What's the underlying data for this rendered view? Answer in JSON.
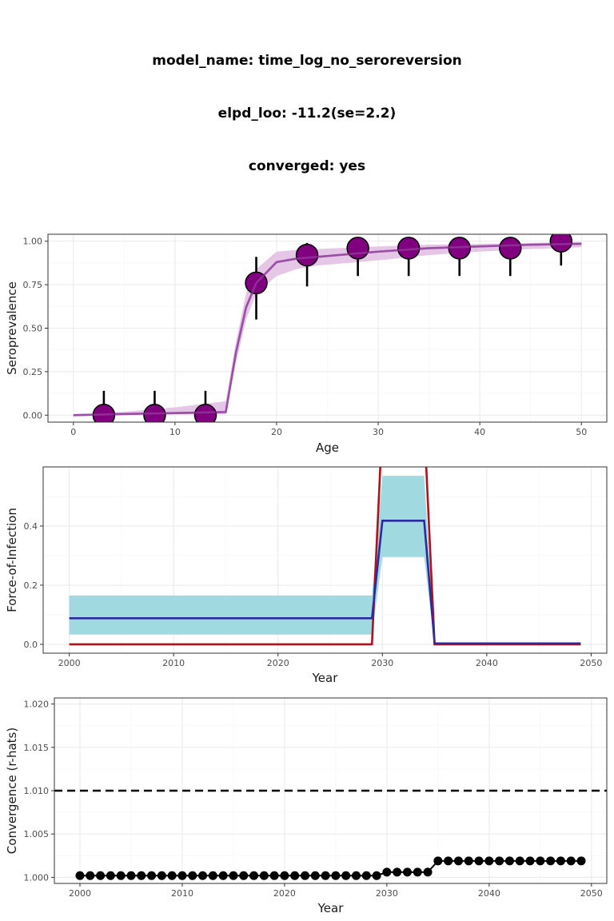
{
  "header": {
    "model_line": "model_name: time_log_no_seroreversion",
    "elpd_line": "elpd_loo: -11.2(se=2.2)",
    "converged_line": "converged: yes"
  },
  "colors": {
    "sero_point": "#800080",
    "sero_line": "#9b4ea5",
    "sero_ribbon": "#e6c6e6",
    "foi_ribbon": "#a1d9e1",
    "foi_estimate": "#2b2b9f",
    "foi_true": "#b3111a",
    "rhat_point": "#000000",
    "grid_major": "#ebebeb",
    "grid_minor": "#f5f5f5",
    "panel_border": "#333333"
  },
  "chart_data": [
    {
      "type": "line",
      "id": "seroprevalence",
      "xlabel": "Age",
      "ylabel": "Seroprevalence",
      "xlim": [
        -2.5,
        52.5
      ],
      "ylim": [
        -0.04,
        1.04
      ],
      "xticks": [
        0,
        10,
        20,
        30,
        40,
        50
      ],
      "yticks": [
        0.0,
        0.25,
        0.5,
        0.75,
        1.0
      ],
      "xtick_labels": [
        "0",
        "10",
        "20",
        "30",
        "40",
        "50"
      ],
      "ytick_labels": [
        "0.00",
        "0.25",
        "0.50",
        "0.75",
        "1.00"
      ],
      "fit": {
        "x": [
          0,
          5,
          10,
          15,
          16,
          17,
          18,
          20,
          22,
          24,
          26,
          28,
          30,
          35,
          40,
          45,
          50
        ],
        "median": [
          0,
          0.007,
          0.012,
          0.018,
          0.36,
          0.62,
          0.76,
          0.88,
          0.9,
          0.91,
          0.92,
          0.93,
          0.94,
          0.96,
          0.97,
          0.98,
          0.985
        ],
        "lower": [
          0,
          0.002,
          0.004,
          0.005,
          0.3,
          0.55,
          0.7,
          0.8,
          0.84,
          0.86,
          0.87,
          0.88,
          0.89,
          0.92,
          0.94,
          0.955,
          0.965
        ],
        "upper": [
          0,
          0.02,
          0.045,
          0.08,
          0.42,
          0.7,
          0.84,
          0.94,
          0.95,
          0.955,
          0.96,
          0.965,
          0.97,
          0.98,
          0.985,
          0.99,
          0.995
        ]
      },
      "observations": {
        "x": [
          3,
          8,
          13,
          18,
          23,
          28,
          33,
          38,
          43,
          48
        ],
        "y": [
          0.0,
          0.0,
          0.0,
          0.76,
          0.92,
          0.96,
          0.96,
          0.96,
          0.96,
          1.0
        ],
        "lower": [
          0.0,
          0.0,
          0.0,
          0.55,
          0.74,
          0.8,
          0.8,
          0.8,
          0.8,
          0.86
        ],
        "upper": [
          0.14,
          0.14,
          0.14,
          0.91,
          0.99,
          0.995,
          0.995,
          0.995,
          0.995,
          1.0
        ]
      }
    },
    {
      "type": "line",
      "id": "force-of-infection",
      "xlabel": "Year",
      "ylabel": "Force-of-Infection",
      "xlim": [
        1997.5,
        2051.5
      ],
      "ylim": [
        -0.03,
        0.6
      ],
      "xticks": [
        2000,
        2010,
        2020,
        2030,
        2040,
        2050
      ],
      "yticks": [
        0.0,
        0.2,
        0.4
      ],
      "xtick_labels": [
        "2000",
        "2010",
        "2020",
        "2030",
        "2040",
        "2050"
      ],
      "ytick_labels": [
        "0.0",
        "0.2",
        "0.4"
      ],
      "estimate": {
        "x": [
          2000,
          2029,
          2030,
          2034,
          2035,
          2049
        ],
        "median": [
          0.088,
          0.088,
          0.418,
          0.418,
          0.003,
          0.003
        ],
        "lower": [
          0.033,
          0.033,
          0.295,
          0.295,
          0.0,
          0.0
        ],
        "upper": [
          0.165,
          0.165,
          0.57,
          0.57,
          0.006,
          0.006
        ]
      },
      "true_foi": {
        "x": [
          2000,
          2029,
          2030,
          2034,
          2035,
          2049
        ],
        "y": [
          0.0,
          0.0,
          0.75,
          0.75,
          0.0,
          0.0
        ]
      }
    },
    {
      "type": "scatter",
      "id": "convergence",
      "xlabel": "Year",
      "ylabel": "Convergence (r-hats)",
      "xlim": [
        1997.5,
        2051.5
      ],
      "ylim": [
        0.9993,
        1.0207
      ],
      "xticks": [
        2000,
        2010,
        2020,
        2030,
        2040,
        2050
      ],
      "yticks": [
        1.0,
        1.005,
        1.01,
        1.015,
        1.02
      ],
      "xtick_labels": [
        "2000",
        "2010",
        "2020",
        "2030",
        "2040",
        "2050"
      ],
      "ytick_labels": [
        "1.000",
        "1.005",
        "1.010",
        "1.015",
        "1.020"
      ],
      "threshold": 1.01,
      "x": [
        2000,
        2001,
        2002,
        2003,
        2004,
        2005,
        2006,
        2007,
        2008,
        2009,
        2010,
        2011,
        2012,
        2013,
        2014,
        2015,
        2016,
        2017,
        2018,
        2019,
        2020,
        2021,
        2022,
        2023,
        2024,
        2025,
        2026,
        2027,
        2028,
        2029,
        2030,
        2031,
        2032,
        2033,
        2034,
        2035,
        2036,
        2037,
        2038,
        2039,
        2040,
        2041,
        2042,
        2043,
        2044,
        2045,
        2046,
        2047,
        2048,
        2049
      ],
      "y": [
        1.0002,
        1.0002,
        1.0002,
        1.0002,
        1.0002,
        1.0002,
        1.0002,
        1.0002,
        1.0002,
        1.0002,
        1.0002,
        1.0002,
        1.0002,
        1.0002,
        1.0002,
        1.0002,
        1.0002,
        1.0002,
        1.0002,
        1.0002,
        1.0002,
        1.0002,
        1.0002,
        1.0002,
        1.0002,
        1.0002,
        1.0002,
        1.0002,
        1.0002,
        1.0002,
        1.0006,
        1.0006,
        1.0006,
        1.0006,
        1.0006,
        1.0019,
        1.0019,
        1.0019,
        1.0019,
        1.0019,
        1.0019,
        1.0019,
        1.0019,
        1.0019,
        1.0019,
        1.0019,
        1.0019,
        1.0019,
        1.0019,
        1.0019
      ]
    }
  ]
}
